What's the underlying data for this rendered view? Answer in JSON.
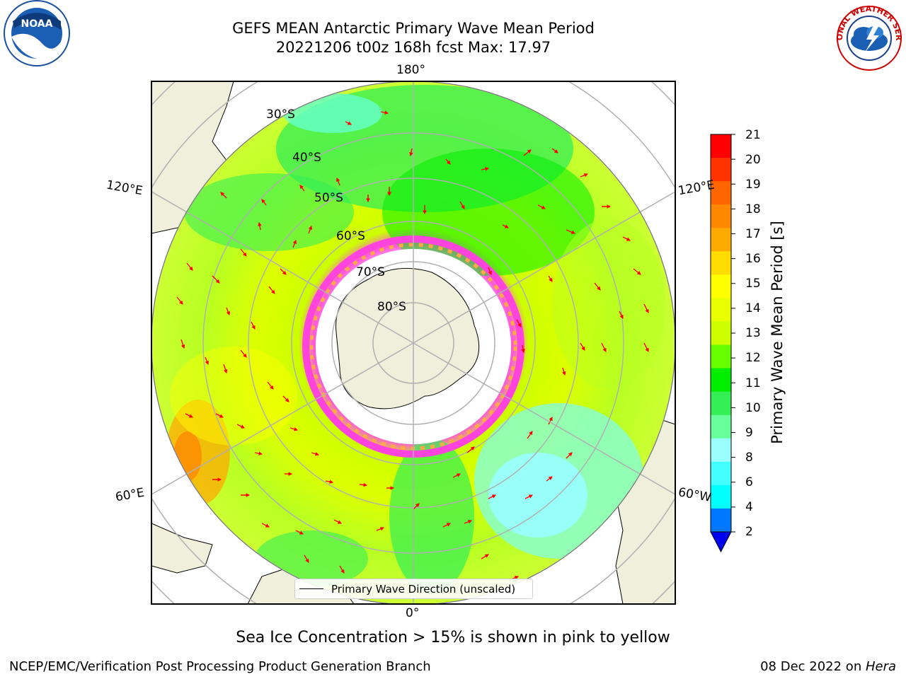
{
  "title": {
    "line1": "GEFS MEAN Antarctic Primary Wave Mean Period",
    "line2": "20221206 t00z 168h fcst   Max: 17.97"
  },
  "logos": {
    "left": "NOAA",
    "right": "NATIONAL WEATHER SERVICE"
  },
  "map": {
    "longitude_labels": [
      "180°",
      "120°E",
      "120°E",
      "60°E",
      "60°W",
      "0°"
    ],
    "latitude_labels": [
      "30°S",
      "40°S",
      "50°S",
      "60°S",
      "70°S",
      "80°S"
    ],
    "legend": "Primary Wave Direction (unscaled)"
  },
  "colorbar": {
    "title": "Primary Wave Mean Period [s]",
    "ticks": [
      "21",
      "20",
      "19",
      "18",
      "17",
      "16",
      "15",
      "14",
      "13",
      "12",
      "11",
      "10",
      "9",
      "8",
      "6",
      "4",
      "2"
    ],
    "colors": [
      "#ff0000",
      "#ff3300",
      "#ff6600",
      "#ff8800",
      "#ffaa00",
      "#ffdd00",
      "#ffff00",
      "#e8ff00",
      "#ccff00",
      "#66ff00",
      "#00ee00",
      "#33ee55",
      "#66ff99",
      "#99ffff",
      "#44ffff",
      "#00ffff",
      "#0077ff",
      "#0000ee"
    ]
  },
  "caption": "Sea Ice Concentration > 15% is shown in pink to yellow",
  "footer": {
    "left": "NCEP/EMC/Verification Post Processing Product Generation Branch",
    "right_date": "08 Dec 2022 on ",
    "right_host": "Hera"
  }
}
